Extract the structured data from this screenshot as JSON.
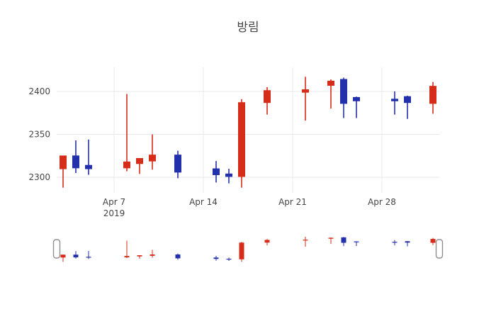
{
  "chart": {
    "title": "방림"
  },
  "colors": {
    "background": "#ffffff",
    "grid": "#e8e8e8",
    "axis_text": "#444444",
    "title_text": "#444444",
    "slider_handle_border": "#8f8f8f",
    "slider_handle_fill": "#ffffff"
  },
  "chart_data": {
    "type": "candlestick",
    "title": "방림",
    "legend": false,
    "grid": true,
    "rangeslider": true,
    "increasing_color": "#d62c1a",
    "decreasing_color": "#2330ac",
    "x_axis": {
      "range": [
        "2019-04-02T12:00:00Z",
        "2019-05-02T12:00:00Z"
      ],
      "ticks": [
        {
          "label": "Apr 7",
          "sublabel": "2019",
          "date": "2019-04-07"
        },
        {
          "label": "Apr 14",
          "date": "2019-04-14"
        },
        {
          "label": "Apr 21",
          "date": "2019-04-21"
        },
        {
          "label": "Apr 28",
          "date": "2019-04-28"
        }
      ]
    },
    "y_axis": {
      "range": [
        2282,
        2428
      ],
      "ticks": [
        {
          "label": "2300",
          "value": 2300
        },
        {
          "label": "2350",
          "value": 2350
        },
        {
          "label": "2400",
          "value": 2400
        }
      ]
    },
    "candles": [
      {
        "date": "2019-04-03",
        "open": 2310,
        "high": 2325,
        "low": 2288,
        "close": 2325
      },
      {
        "date": "2019-04-04",
        "open": 2325,
        "high": 2343,
        "low": 2305,
        "close": 2311
      },
      {
        "date": "2019-04-05",
        "open": 2314,
        "high": 2344,
        "low": 2303,
        "close": 2310
      },
      {
        "date": "2019-04-08",
        "open": 2311,
        "high": 2397,
        "low": 2307,
        "close": 2318
      },
      {
        "date": "2019-04-09",
        "open": 2316,
        "high": 2322,
        "low": 2304,
        "close": 2322
      },
      {
        "date": "2019-04-10",
        "open": 2319,
        "high": 2350,
        "low": 2309,
        "close": 2326
      },
      {
        "date": "2019-04-12",
        "open": 2326,
        "high": 2331,
        "low": 2299,
        "close": 2306
      },
      {
        "date": "2019-04-15",
        "open": 2310,
        "high": 2319,
        "low": 2294,
        "close": 2303
      },
      {
        "date": "2019-04-16",
        "open": 2304,
        "high": 2310,
        "low": 2293,
        "close": 2301
      },
      {
        "date": "2019-04-17",
        "open": 2301,
        "high": 2391,
        "low": 2288,
        "close": 2387
      },
      {
        "date": "2019-04-19",
        "open": 2387,
        "high": 2405,
        "low": 2373,
        "close": 2401
      },
      {
        "date": "2019-04-22",
        "open": 2399,
        "high": 2417,
        "low": 2366,
        "close": 2402
      },
      {
        "date": "2019-04-24",
        "open": 2407,
        "high": 2414,
        "low": 2380,
        "close": 2412
      },
      {
        "date": "2019-04-25",
        "open": 2414,
        "high": 2416,
        "low": 2369,
        "close": 2386
      },
      {
        "date": "2019-04-26",
        "open": 2393,
        "high": 2394,
        "low": 2369,
        "close": 2389
      },
      {
        "date": "2019-04-29",
        "open": 2391,
        "high": 2400,
        "low": 2373,
        "close": 2389
      },
      {
        "date": "2019-04-30",
        "open": 2394,
        "high": 2395,
        "low": 2368,
        "close": 2387
      },
      {
        "date": "2019-05-02",
        "open": 2386,
        "high": 2411,
        "low": 2374,
        "close": 2406
      }
    ]
  }
}
